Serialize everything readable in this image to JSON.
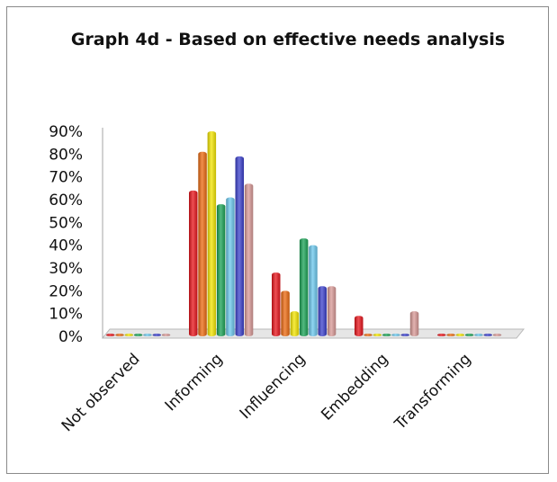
{
  "chart_data": {
    "type": "bar",
    "title": "Graph 4d - Based on effective needs analysis",
    "categories": [
      "Not observed",
      "Informing",
      "Influencing",
      "Embedding",
      "Transforming"
    ],
    "y_tick_labels": [
      "0%",
      "10%",
      "20%",
      "30%",
      "40%",
      "50%",
      "60%",
      "70%",
      "80%",
      "90%"
    ],
    "ylim": [
      0,
      90
    ],
    "legend": "none",
    "series": [
      {
        "color": "#e8141b",
        "values": [
          0,
          64,
          28,
          9,
          0
        ]
      },
      {
        "color": "#ec6a10",
        "values": [
          0,
          81,
          20,
          0,
          0
        ]
      },
      {
        "color": "#f4e600",
        "values": [
          0,
          90,
          11,
          0,
          0
        ]
      },
      {
        "color": "#1aa355",
        "values": [
          0,
          58,
          43,
          0,
          0
        ]
      },
      {
        "color": "#6cc8ee",
        "values": [
          0,
          61,
          40,
          0,
          0
        ]
      },
      {
        "color": "#3b40cc",
        "values": [
          0,
          79,
          22,
          0,
          0
        ]
      },
      {
        "color": "#d99a97",
        "values": [
          0,
          67,
          22,
          11,
          0
        ]
      }
    ]
  }
}
